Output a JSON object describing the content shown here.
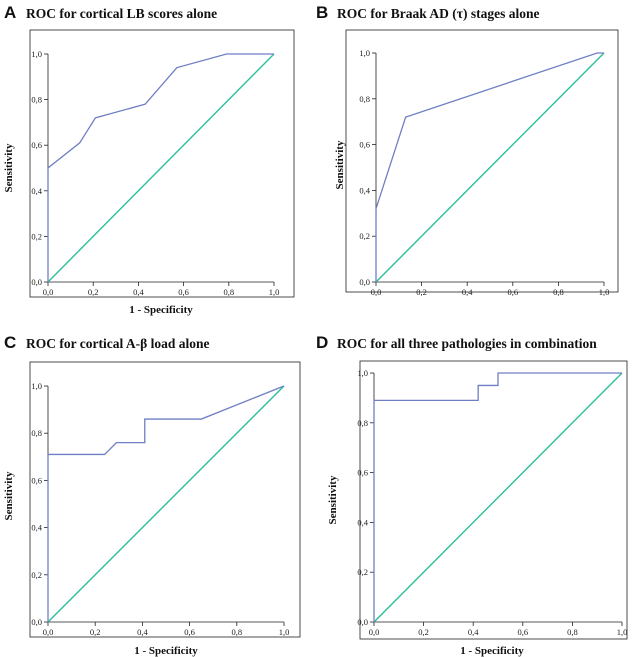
{
  "chart_data": [
    {
      "type": "line",
      "panel_label": "A",
      "title": "ROC for cortical LB scores alone",
      "xlabel": "1 - Specificity",
      "ylabel": "Sensitivity",
      "xlim": [
        0,
        1
      ],
      "ylim": [
        0,
        1
      ],
      "x_ticks": [
        "0,0",
        "0,2",
        "0,4",
        "0,6",
        "0,8",
        "1,0"
      ],
      "y_ticks": [
        "0,0",
        "0,2",
        "0,4",
        "0,6",
        "0,8",
        "1,0"
      ],
      "series": [
        {
          "name": "ROC curve",
          "color": "#6f7fc4",
          "x": [
            0,
            0,
            0.14,
            0.21,
            0.43,
            0.57,
            0.79,
            1.0
          ],
          "y": [
            0,
            0.5,
            0.61,
            0.72,
            0.78,
            0.94,
            1.0,
            1.0
          ]
        },
        {
          "name": "Reference line",
          "color": "#2bbf9a",
          "x": [
            0,
            1
          ],
          "y": [
            0,
            1
          ]
        }
      ]
    },
    {
      "type": "line",
      "panel_label": "B",
      "title": "ROC for Braak AD (τ) stages alone",
      "xlabel": "1 - Specificity",
      "ylabel": "Sensitivity",
      "xlim": [
        0,
        1
      ],
      "ylim": [
        0,
        1
      ],
      "x_ticks": [
        "0,0",
        "0,2",
        "0,4",
        "0,6",
        "0,8",
        "1,0"
      ],
      "y_ticks": [
        "0,0",
        "0,2",
        "0,4",
        "0,6",
        "0,8",
        "1,0"
      ],
      "series": [
        {
          "name": "ROC curve",
          "color": "#6f7fc4",
          "x": [
            0,
            0,
            0.13,
            0.97,
            1.0
          ],
          "y": [
            0,
            0.32,
            0.72,
            1.0,
            1.0
          ]
        },
        {
          "name": "Reference line",
          "color": "#2bbf9a",
          "x": [
            0,
            1
          ],
          "y": [
            0,
            1
          ]
        }
      ]
    },
    {
      "type": "line",
      "panel_label": "C",
      "title": "ROC for cortical A-β load alone",
      "xlabel": "1 - Specificity",
      "ylabel": "Sensitivity",
      "xlim": [
        0,
        1
      ],
      "ylim": [
        0,
        1
      ],
      "x_ticks": [
        "0,0",
        "0,2",
        "0,4",
        "0,6",
        "0,8",
        "1,0"
      ],
      "y_ticks": [
        "0,0",
        "0,2",
        "0,4",
        "0,6",
        "0,8",
        "1,0"
      ],
      "series": [
        {
          "name": "ROC curve",
          "color": "#6f7fc4",
          "x": [
            0,
            0,
            0.24,
            0.29,
            0.41,
            0.41,
            0.65,
            1.0
          ],
          "y": [
            0,
            0.71,
            0.71,
            0.76,
            0.76,
            0.86,
            0.86,
            1.0
          ]
        },
        {
          "name": "Reference line",
          "color": "#2bbf9a",
          "x": [
            0,
            1
          ],
          "y": [
            0,
            1
          ]
        }
      ]
    },
    {
      "type": "line",
      "panel_label": "D",
      "title": "ROC for all three pathologies in combination",
      "xlabel": "1 - Specificity",
      "ylabel": "Sensitivity",
      "xlim": [
        0,
        1
      ],
      "ylim": [
        0,
        1
      ],
      "x_ticks": [
        "0,0",
        "0,2",
        "0,4",
        "0,6",
        "0,8",
        "1,0"
      ],
      "y_ticks": [
        "0,0",
        "0,2",
        "0,4",
        "0,6",
        "0,8",
        "1,0"
      ],
      "series": [
        {
          "name": "ROC curve",
          "color": "#6f7fc4",
          "x": [
            0,
            0,
            0.42,
            0.42,
            0.5,
            0.5,
            1.0
          ],
          "y": [
            0,
            0.89,
            0.89,
            0.95,
            0.95,
            1.0,
            1.0
          ]
        },
        {
          "name": "Reference line",
          "color": "#2bbf9a",
          "x": [
            0,
            1
          ],
          "y": [
            0,
            1
          ]
        }
      ]
    }
  ]
}
